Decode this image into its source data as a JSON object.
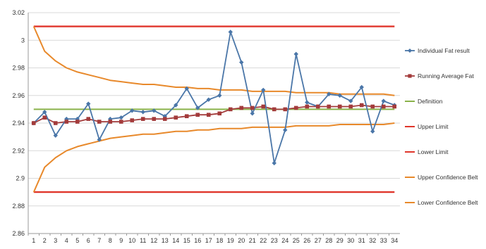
{
  "chart_data": {
    "type": "line",
    "title": "",
    "xlabel": "",
    "ylabel": "",
    "x": [
      1,
      2,
      3,
      4,
      5,
      6,
      7,
      8,
      9,
      10,
      11,
      12,
      13,
      14,
      15,
      16,
      17,
      18,
      19,
      20,
      21,
      22,
      23,
      24,
      25,
      26,
      27,
      28,
      29,
      30,
      31,
      32,
      33,
      34
    ],
    "ylim": [
      2.86,
      3.02
    ],
    "y_ticks": [
      "2.86",
      "2.88",
      "2.9",
      "2.92",
      "2.94",
      "2.96",
      "2.98",
      "3",
      "3.02"
    ],
    "grid": true,
    "legend_position": "right",
    "series": [
      {
        "name": "Individual Fat result",
        "color": "#4a76a8",
        "marker": "diamond",
        "values": [
          2.94,
          2.948,
          2.931,
          2.943,
          2.943,
          2.954,
          2.928,
          2.943,
          2.944,
          2.949,
          2.948,
          2.949,
          2.945,
          2.953,
          2.965,
          2.951,
          2.957,
          2.96,
          3.006,
          2.984,
          2.947,
          2.964,
          2.911,
          2.935,
          2.99,
          2.955,
          2.952,
          2.961,
          2.96,
          2.956,
          2.966,
          2.934,
          2.956,
          2.953
        ]
      },
      {
        "name": "Running Average Fat",
        "color": "#a33b3b",
        "marker": "square",
        "values": [
          2.94,
          2.944,
          2.94,
          2.941,
          2.941,
          2.943,
          2.941,
          2.941,
          2.941,
          2.942,
          2.943,
          2.943,
          2.943,
          2.944,
          2.945,
          2.946,
          2.946,
          2.947,
          2.95,
          2.951,
          2.951,
          2.952,
          2.95,
          2.95,
          2.951,
          2.952,
          2.952,
          2.952,
          2.952,
          2.952,
          2.953,
          2.952,
          2.952,
          2.952
        ]
      },
      {
        "name": "Definition",
        "color": "#8ab24a",
        "marker": "none",
        "values": [
          2.95,
          2.95,
          2.95,
          2.95,
          2.95,
          2.95,
          2.95,
          2.95,
          2.95,
          2.95,
          2.95,
          2.95,
          2.95,
          2.95,
          2.95,
          2.95,
          2.95,
          2.95,
          2.95,
          2.95,
          2.95,
          2.95,
          2.95,
          2.95,
          2.95,
          2.95,
          2.95,
          2.95,
          2.95,
          2.95,
          2.95,
          2.95,
          2.95,
          2.95
        ]
      },
      {
        "name": "Upper Limit",
        "color": "#e0352b",
        "marker": "none",
        "values": [
          3.01,
          3.01,
          3.01,
          3.01,
          3.01,
          3.01,
          3.01,
          3.01,
          3.01,
          3.01,
          3.01,
          3.01,
          3.01,
          3.01,
          3.01,
          3.01,
          3.01,
          3.01,
          3.01,
          3.01,
          3.01,
          3.01,
          3.01,
          3.01,
          3.01,
          3.01,
          3.01,
          3.01,
          3.01,
          3.01,
          3.01,
          3.01,
          3.01,
          3.01
        ]
      },
      {
        "name": "Lower Limit",
        "color": "#e0352b",
        "marker": "none",
        "values": [
          2.89,
          2.89,
          2.89,
          2.89,
          2.89,
          2.89,
          2.89,
          2.89,
          2.89,
          2.89,
          2.89,
          2.89,
          2.89,
          2.89,
          2.89,
          2.89,
          2.89,
          2.89,
          2.89,
          2.89,
          2.89,
          2.89,
          2.89,
          2.89,
          2.89,
          2.89,
          2.89,
          2.89,
          2.89,
          2.89,
          2.89,
          2.89,
          2.89,
          2.89
        ]
      },
      {
        "name": "Upper Confidence Belt",
        "color": "#e8892b",
        "marker": "none",
        "values": [
          3.01,
          2.992,
          2.985,
          2.98,
          2.977,
          2.975,
          2.973,
          2.971,
          2.97,
          2.969,
          2.968,
          2.968,
          2.967,
          2.966,
          2.966,
          2.965,
          2.965,
          2.964,
          2.964,
          2.964,
          2.963,
          2.963,
          2.963,
          2.963,
          2.962,
          2.962,
          2.962,
          2.962,
          2.961,
          2.961,
          2.961,
          2.961,
          2.961,
          2.96
        ]
      },
      {
        "name": "Lower Confidence Belt",
        "color": "#e8892b",
        "marker": "none",
        "values": [
          2.89,
          2.908,
          2.915,
          2.92,
          2.923,
          2.925,
          2.927,
          2.929,
          2.93,
          2.931,
          2.932,
          2.932,
          2.933,
          2.934,
          2.934,
          2.935,
          2.935,
          2.936,
          2.936,
          2.936,
          2.937,
          2.937,
          2.937,
          2.937,
          2.938,
          2.938,
          2.938,
          2.938,
          2.939,
          2.939,
          2.939,
          2.939,
          2.939,
          2.94
        ]
      }
    ]
  }
}
